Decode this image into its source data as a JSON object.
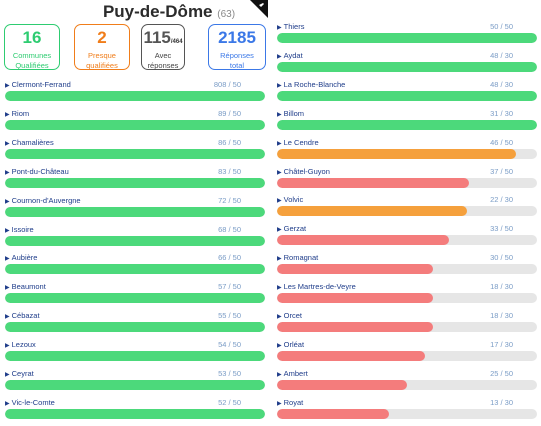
{
  "header": {
    "title": "Puy-de-Dôme",
    "count": "(63)"
  },
  "stats": [
    {
      "value": "16",
      "suffix": "",
      "label1": "Communes",
      "label2": "Qualifiées",
      "color": "#2ecc71"
    },
    {
      "value": "2",
      "suffix": "",
      "label1": "Presque",
      "label2": "qualifiées",
      "color": "#f07d1a"
    },
    {
      "value": "115",
      "suffix": "/464",
      "label1": "Avec",
      "label2": "réponses",
      "color": "#555555"
    },
    {
      "value": "2185",
      "suffix": "",
      "label1": "Réponses",
      "label2": "total",
      "color": "#3b78e7"
    }
  ],
  "colors": {
    "qualified": "#4cd97b",
    "almost": "#f5a03c",
    "below": "#f47c7c",
    "track": "#e6e6e6"
  },
  "left_column": [
    {
      "name": "Clermont-Ferrand",
      "score": "808 / 50",
      "fraction": 1.0,
      "status": "qualified"
    },
    {
      "name": "Riom",
      "score": "89 / 50",
      "fraction": 1.0,
      "status": "qualified"
    },
    {
      "name": "Chamalières",
      "score": "86 / 50",
      "fraction": 1.0,
      "status": "qualified"
    },
    {
      "name": "Pont-du-Château",
      "score": "83 / 50",
      "fraction": 1.0,
      "status": "qualified"
    },
    {
      "name": "Cournon-d'Auvergne",
      "score": "72 / 50",
      "fraction": 1.0,
      "status": "qualified"
    },
    {
      "name": "Issoire",
      "score": "68 / 50",
      "fraction": 1.0,
      "status": "qualified"
    },
    {
      "name": "Aubière",
      "score": "66 / 50",
      "fraction": 1.0,
      "status": "qualified"
    },
    {
      "name": "Beaumont",
      "score": "57 / 50",
      "fraction": 1.0,
      "status": "qualified"
    },
    {
      "name": "Cébazat",
      "score": "55 / 50",
      "fraction": 1.0,
      "status": "qualified"
    },
    {
      "name": "Lezoux",
      "score": "54 / 50",
      "fraction": 1.0,
      "status": "qualified"
    },
    {
      "name": "Ceyrat",
      "score": "53 / 50",
      "fraction": 1.0,
      "status": "qualified"
    },
    {
      "name": "Vic-le-Comte",
      "score": "52 / 50",
      "fraction": 1.0,
      "status": "qualified"
    }
  ],
  "right_column": [
    {
      "name": "Thiers",
      "score": "50 / 50",
      "fraction": 1.0,
      "status": "qualified"
    },
    {
      "name": "Aydat",
      "score": "48 / 30",
      "fraction": 1.0,
      "status": "qualified"
    },
    {
      "name": "La Roche-Blanche",
      "score": "48 / 30",
      "fraction": 1.0,
      "status": "qualified"
    },
    {
      "name": "Billom",
      "score": "31 / 30",
      "fraction": 1.0,
      "status": "qualified"
    },
    {
      "name": "Le Cendre",
      "score": "46 / 50",
      "fraction": 0.92,
      "status": "almost"
    },
    {
      "name": "Châtel-Guyon",
      "score": "37 / 50",
      "fraction": 0.74,
      "status": "below"
    },
    {
      "name": "Volvic",
      "score": "22 / 30",
      "fraction": 0.73,
      "status": "almost"
    },
    {
      "name": "Gerzat",
      "score": "33 / 50",
      "fraction": 0.66,
      "status": "below"
    },
    {
      "name": "Romagnat",
      "score": "30 / 50",
      "fraction": 0.6,
      "status": "below"
    },
    {
      "name": "Les Martres-de-Veyre",
      "score": "18 / 30",
      "fraction": 0.6,
      "status": "below"
    },
    {
      "name": "Orcet",
      "score": "18 / 30",
      "fraction": 0.6,
      "status": "below"
    },
    {
      "name": "Orléat",
      "score": "17 / 30",
      "fraction": 0.57,
      "status": "below"
    },
    {
      "name": "Ambert",
      "score": "25 / 50",
      "fraction": 0.5,
      "status": "below"
    },
    {
      "name": "Royat",
      "score": "13 / 30",
      "fraction": 0.43,
      "status": "below"
    }
  ]
}
